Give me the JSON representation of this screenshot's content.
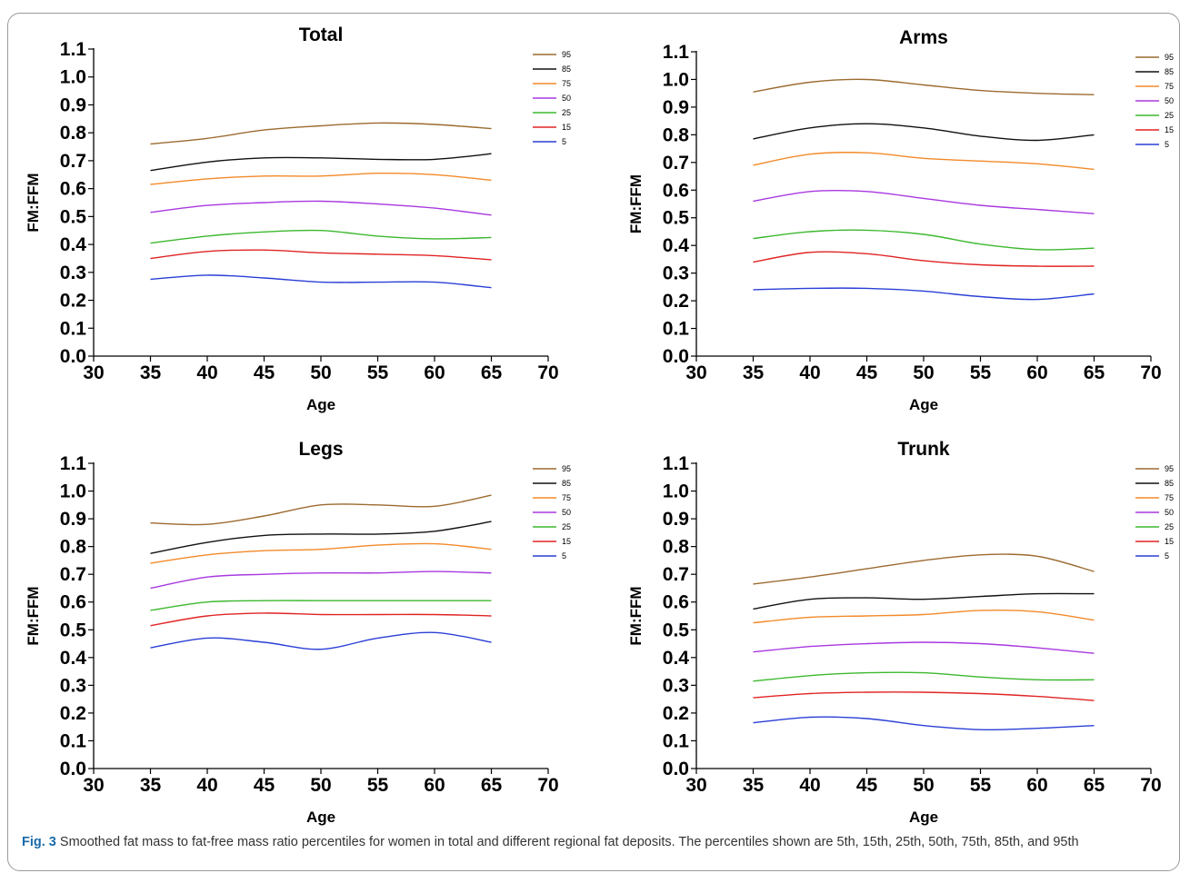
{
  "caption": {
    "label": "Fig. 3",
    "text": " Smoothed fat mass to fat-free mass ratio percentiles for women in total and different regional fat deposits. The percentiles shown are 5th, 15th, 25th, 50th, 75th, 85th, and 95th"
  },
  "colors": {
    "95": "#9c6a30",
    "85": "#111111",
    "75": "#f28a2a",
    "50": "#a838e0",
    "25": "#3cb82e",
    "15": "#e02424",
    "5": "#2a3fd6"
  },
  "chart_data": [
    {
      "type": "line",
      "title": "Total",
      "xlabel": "Age",
      "ylabel": "FM:FFM",
      "xlim": [
        30,
        70
      ],
      "ylim": [
        0.0,
        1.1
      ],
      "xticks": [
        "30",
        "35",
        "40",
        "45",
        "50",
        "55",
        "60",
        "65",
        "70"
      ],
      "yticks": [
        "0.0",
        "0.1",
        "0.2",
        "0.3",
        "0.4",
        "0.5",
        "0.6",
        "0.7",
        "0.8",
        "0.9",
        "1.0",
        "1.1"
      ],
      "x": [
        35,
        40,
        45,
        50,
        55,
        60,
        65
      ],
      "series": [
        {
          "name": "95",
          "values": [
            0.76,
            0.78,
            0.81,
            0.825,
            0.835,
            0.83,
            0.815
          ]
        },
        {
          "name": "85",
          "values": [
            0.665,
            0.695,
            0.71,
            0.71,
            0.705,
            0.705,
            0.725
          ]
        },
        {
          "name": "75",
          "values": [
            0.615,
            0.635,
            0.645,
            0.645,
            0.655,
            0.65,
            0.63
          ]
        },
        {
          "name": "50",
          "values": [
            0.515,
            0.54,
            0.55,
            0.555,
            0.545,
            0.53,
            0.505
          ]
        },
        {
          "name": "25",
          "values": [
            0.405,
            0.43,
            0.445,
            0.45,
            0.43,
            0.42,
            0.425
          ]
        },
        {
          "name": "15",
          "values": [
            0.35,
            0.375,
            0.38,
            0.37,
            0.365,
            0.36,
            0.345
          ]
        },
        {
          "name": "5",
          "values": [
            0.275,
            0.29,
            0.28,
            0.265,
            0.265,
            0.265,
            0.245
          ]
        }
      ]
    },
    {
      "type": "line",
      "title": "Arms",
      "xlabel": "Age",
      "ylabel": "FM:FFM",
      "xlim": [
        30,
        70
      ],
      "ylim": [
        0.0,
        1.1
      ],
      "xticks": [
        "30",
        "35",
        "40",
        "45",
        "50",
        "55",
        "60",
        "65",
        "70"
      ],
      "yticks": [
        "0.0",
        "0.1",
        "0.2",
        "0.3",
        "0.4",
        "0.5",
        "0.6",
        "0.7",
        "0.8",
        "0.9",
        "1.0",
        "1.1"
      ],
      "x": [
        35,
        40,
        45,
        50,
        55,
        60,
        65
      ],
      "series": [
        {
          "name": "95",
          "values": [
            0.955,
            0.99,
            1.0,
            0.98,
            0.96,
            0.95,
            0.945
          ]
        },
        {
          "name": "85",
          "values": [
            0.785,
            0.825,
            0.84,
            0.825,
            0.795,
            0.78,
            0.8
          ]
        },
        {
          "name": "75",
          "values": [
            0.69,
            0.73,
            0.735,
            0.715,
            0.705,
            0.695,
            0.675
          ]
        },
        {
          "name": "50",
          "values": [
            0.56,
            0.595,
            0.595,
            0.57,
            0.545,
            0.53,
            0.515
          ]
        },
        {
          "name": "25",
          "values": [
            0.425,
            0.45,
            0.455,
            0.44,
            0.405,
            0.385,
            0.39
          ]
        },
        {
          "name": "15",
          "values": [
            0.34,
            0.375,
            0.37,
            0.345,
            0.33,
            0.325,
            0.325
          ]
        },
        {
          "name": "5",
          "values": [
            0.24,
            0.245,
            0.245,
            0.235,
            0.215,
            0.205,
            0.225
          ]
        }
      ]
    },
    {
      "type": "line",
      "title": "Legs",
      "xlabel": "Age",
      "ylabel": "FM:FFM",
      "xlim": [
        30,
        70
      ],
      "ylim": [
        0.0,
        1.1
      ],
      "xticks": [
        "30",
        "35",
        "40",
        "45",
        "50",
        "55",
        "60",
        "65",
        "70"
      ],
      "yticks": [
        "0.0",
        "0.1",
        "0.2",
        "0.3",
        "0.4",
        "0.5",
        "0.6",
        "0.7",
        "0.8",
        "0.9",
        "1.0",
        "1.1"
      ],
      "x": [
        35,
        40,
        45,
        50,
        55,
        60,
        65
      ],
      "series": [
        {
          "name": "95",
          "values": [
            0.885,
            0.88,
            0.91,
            0.95,
            0.95,
            0.945,
            0.985
          ]
        },
        {
          "name": "85",
          "values": [
            0.775,
            0.815,
            0.84,
            0.845,
            0.845,
            0.855,
            0.89
          ]
        },
        {
          "name": "75",
          "values": [
            0.74,
            0.77,
            0.785,
            0.79,
            0.805,
            0.81,
            0.79
          ]
        },
        {
          "name": "50",
          "values": [
            0.65,
            0.69,
            0.7,
            0.705,
            0.705,
            0.71,
            0.705
          ]
        },
        {
          "name": "25",
          "values": [
            0.57,
            0.6,
            0.605,
            0.605,
            0.605,
            0.605,
            0.605
          ]
        },
        {
          "name": "15",
          "values": [
            0.515,
            0.55,
            0.56,
            0.555,
            0.555,
            0.555,
            0.55
          ]
        },
        {
          "name": "5",
          "values": [
            0.435,
            0.47,
            0.455,
            0.43,
            0.47,
            0.49,
            0.455
          ]
        }
      ]
    },
    {
      "type": "line",
      "title": "Trunk",
      "xlabel": "Age",
      "ylabel": "FM:FFM",
      "xlim": [
        30,
        70
      ],
      "ylim": [
        0.0,
        1.1
      ],
      "xticks": [
        "30",
        "35",
        "40",
        "45",
        "50",
        "55",
        "60",
        "65",
        "70"
      ],
      "yticks": [
        "0.0",
        "0.1",
        "0.2",
        "0.3",
        "0.4",
        "0.5",
        "0.6",
        "0.7",
        "0.8",
        "0.9",
        "1.0",
        "1.1"
      ],
      "x": [
        35,
        40,
        45,
        50,
        55,
        60,
        65
      ],
      "series": [
        {
          "name": "95",
          "values": [
            0.665,
            0.69,
            0.72,
            0.75,
            0.77,
            0.765,
            0.71
          ]
        },
        {
          "name": "85",
          "values": [
            0.575,
            0.61,
            0.615,
            0.61,
            0.62,
            0.63,
            0.63
          ]
        },
        {
          "name": "75",
          "values": [
            0.525,
            0.545,
            0.55,
            0.555,
            0.57,
            0.565,
            0.535
          ]
        },
        {
          "name": "50",
          "values": [
            0.42,
            0.44,
            0.45,
            0.455,
            0.45,
            0.435,
            0.415
          ]
        },
        {
          "name": "25",
          "values": [
            0.315,
            0.335,
            0.345,
            0.345,
            0.33,
            0.32,
            0.32
          ]
        },
        {
          "name": "15",
          "values": [
            0.255,
            0.27,
            0.275,
            0.275,
            0.27,
            0.26,
            0.245
          ]
        },
        {
          "name": "5",
          "values": [
            0.165,
            0.185,
            0.18,
            0.155,
            0.14,
            0.145,
            0.155
          ]
        }
      ]
    }
  ]
}
